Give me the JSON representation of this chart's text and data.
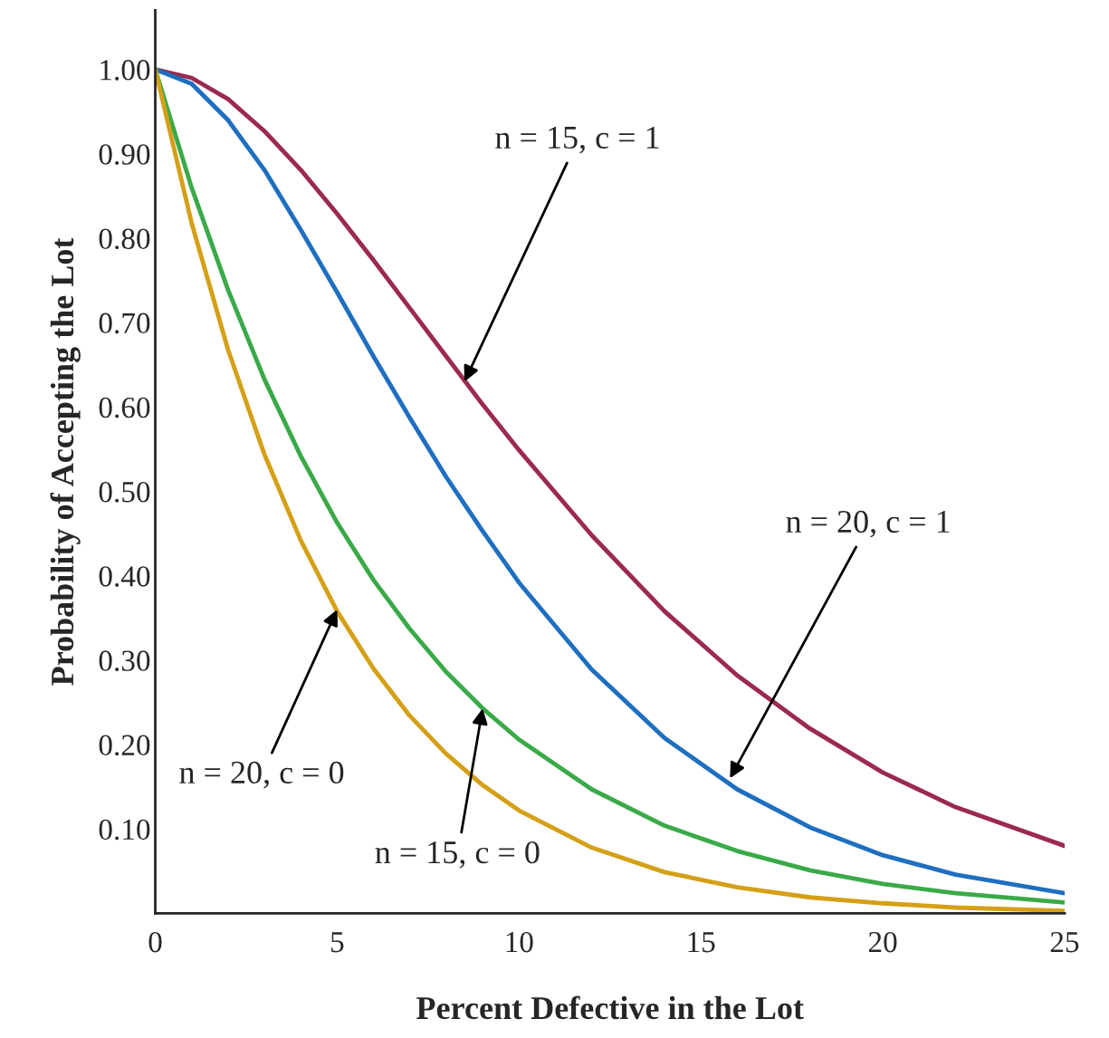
{
  "chart_data": {
    "type": "line",
    "xlabel": "Percent Defective in the Lot",
    "ylabel": "Probability of Accepting the Lot",
    "x": [
      0,
      1,
      2,
      3,
      4,
      5,
      6,
      7,
      8,
      9,
      10,
      12,
      14,
      16,
      18,
      20,
      22,
      25
    ],
    "series": [
      {
        "color": "#9b2a4e",
        "values": [
          1.0,
          0.99,
          0.965,
          0.927,
          0.881,
          0.829,
          0.774,
          0.717,
          0.66,
          0.603,
          0.549,
          0.448,
          0.358,
          0.282,
          0.219,
          0.167,
          0.126,
          0.08
        ]
      },
      {
        "color": "#1f6fc0",
        "values": [
          1.0,
          0.983,
          0.94,
          0.881,
          0.81,
          0.736,
          0.66,
          0.587,
          0.517,
          0.453,
          0.392,
          0.289,
          0.208,
          0.147,
          0.102,
          0.069,
          0.046,
          0.024
        ]
      },
      {
        "color": "#3aaa48",
        "values": [
          1.0,
          0.86,
          0.739,
          0.633,
          0.542,
          0.463,
          0.395,
          0.337,
          0.286,
          0.243,
          0.206,
          0.147,
          0.104,
          0.074,
          0.051,
          0.035,
          0.024,
          0.013
        ]
      },
      {
        "color": "#d4a017",
        "values": [
          1.0,
          0.818,
          0.668,
          0.544,
          0.442,
          0.358,
          0.29,
          0.234,
          0.189,
          0.152,
          0.122,
          0.078,
          0.049,
          0.031,
          0.019,
          0.012,
          0.007,
          0.003
        ]
      }
    ],
    "xlim": [
      0,
      25
    ],
    "xticks": [
      0,
      5,
      10,
      15,
      20,
      25
    ],
    "ylim": [
      0,
      1.07
    ],
    "yticks": [
      {
        "value": 0.1,
        "label": "0.10"
      },
      {
        "value": 0.2,
        "label": "0.20"
      },
      {
        "value": 0.3,
        "label": "0.30"
      },
      {
        "value": 0.4,
        "label": "0.40"
      },
      {
        "value": 0.5,
        "label": "0.50"
      },
      {
        "value": 0.6,
        "label": "0.60"
      },
      {
        "value": 0.7,
        "label": "0.70"
      },
      {
        "value": 0.8,
        "label": "0.80"
      },
      {
        "value": 0.9,
        "label": "0.90"
      },
      {
        "value": 1.0,
        "label": "1.00"
      }
    ],
    "annotations": [
      {
        "text": "n = 15, c = 1",
        "x": 8.5,
        "y": 0.63
      },
      {
        "text": "n = 20, c = 1",
        "x": 15.8,
        "y": 0.16
      },
      {
        "text": "n = 20, c = 0",
        "x": 5,
        "y": 0.36
      },
      {
        "text": "n = 15, c = 0",
        "x": 9,
        "y": 0.243
      }
    ],
    "grid": false
  }
}
